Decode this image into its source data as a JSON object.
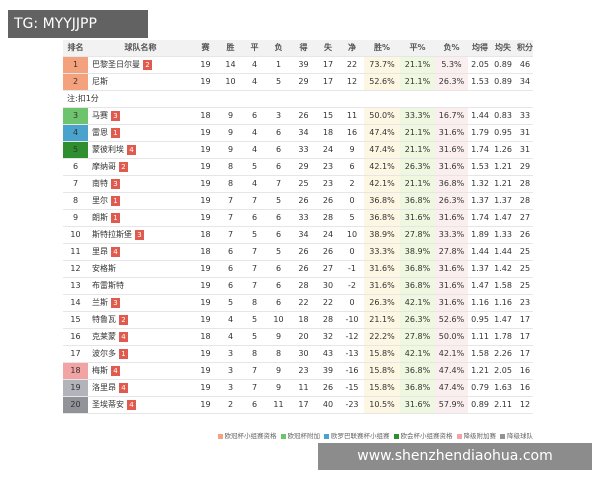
{
  "watermark_top": "TG: MYYJJPP",
  "watermark_bottom": "www.shenzhendiaohua.com",
  "table": {
    "header": [
      "排名",
      "球队名称",
      "赛",
      "胜",
      "平",
      "负",
      "得",
      "失",
      "净",
      "胜%",
      "平%",
      "负%",
      "均得",
      "均失",
      "积分"
    ],
    "rows": [
      {
        "rank": "1",
        "team": "巴黎圣日尔曼",
        "badge": "2",
        "color": "#f4a27e",
        "cells": [
          "19",
          "14",
          "4",
          "1",
          "39",
          "17",
          "22",
          "73.7%",
          "21.1%",
          "5.3%",
          "2.05",
          "0.89",
          "46"
        ]
      },
      {
        "rank": "2",
        "team": "尼斯",
        "color": "#f4a27e",
        "cells": [
          "19",
          "10",
          "4",
          "5",
          "29",
          "17",
          "12",
          "52.6%",
          "21.1%",
          "26.3%",
          "1.53",
          "0.89",
          "34"
        ]
      },
      {
        "note": "注:扣1分"
      },
      {
        "rank": "3",
        "team": "马赛",
        "badge": "3",
        "color": "#6dc46d",
        "cells": [
          "18",
          "9",
          "6",
          "3",
          "26",
          "15",
          "11",
          "50.0%",
          "33.3%",
          "16.7%",
          "1.44",
          "0.83",
          "33"
        ]
      },
      {
        "rank": "4",
        "team": "雷恩",
        "badge": "1",
        "color": "#4aa3cc",
        "cells": [
          "19",
          "9",
          "4",
          "6",
          "34",
          "18",
          "16",
          "47.4%",
          "21.1%",
          "31.6%",
          "1.79",
          "0.95",
          "31"
        ]
      },
      {
        "rank": "5",
        "team": "蒙彼利埃",
        "badge": "4",
        "color": "#2f8f2f",
        "cells": [
          "19",
          "9",
          "4",
          "6",
          "33",
          "24",
          "9",
          "47.4%",
          "21.1%",
          "31.6%",
          "1.74",
          "1.26",
          "31"
        ]
      },
      {
        "rank": "6",
        "team": "摩纳哥",
        "badge": "2",
        "cells": [
          "19",
          "8",
          "5",
          "6",
          "29",
          "23",
          "6",
          "42.1%",
          "26.3%",
          "31.6%",
          "1.53",
          "1.21",
          "29"
        ]
      },
      {
        "rank": "7",
        "team": "南特",
        "badge": "3",
        "cells": [
          "19",
          "8",
          "4",
          "7",
          "25",
          "23",
          "2",
          "42.1%",
          "21.1%",
          "36.8%",
          "1.32",
          "1.21",
          "28"
        ]
      },
      {
        "rank": "8",
        "team": "里尔",
        "badge": "1",
        "cells": [
          "19",
          "7",
          "7",
          "5",
          "26",
          "26",
          "0",
          "36.8%",
          "36.8%",
          "26.3%",
          "1.37",
          "1.37",
          "28"
        ]
      },
      {
        "rank": "9",
        "team": "朗斯",
        "badge": "1",
        "cells": [
          "19",
          "7",
          "6",
          "6",
          "33",
          "28",
          "5",
          "36.8%",
          "31.6%",
          "31.6%",
          "1.74",
          "1.47",
          "27"
        ]
      },
      {
        "rank": "10",
        "team": "斯特拉斯堡",
        "badge": "3",
        "cells": [
          "18",
          "7",
          "5",
          "6",
          "34",
          "24",
          "10",
          "38.9%",
          "27.8%",
          "33.3%",
          "1.89",
          "1.33",
          "26"
        ]
      },
      {
        "rank": "11",
        "team": "里昂",
        "badge": "4",
        "cells": [
          "18",
          "6",
          "7",
          "5",
          "26",
          "26",
          "0",
          "33.3%",
          "38.9%",
          "27.8%",
          "1.44",
          "1.44",
          "25"
        ]
      },
      {
        "rank": "12",
        "team": "安格斯",
        "cells": [
          "19",
          "6",
          "7",
          "6",
          "26",
          "27",
          "-1",
          "31.6%",
          "36.8%",
          "31.6%",
          "1.37",
          "1.42",
          "25"
        ]
      },
      {
        "rank": "13",
        "team": "布雷斯特",
        "cells": [
          "19",
          "6",
          "7",
          "6",
          "28",
          "30",
          "-2",
          "31.6%",
          "36.8%",
          "31.6%",
          "1.47",
          "1.58",
          "25"
        ]
      },
      {
        "rank": "14",
        "team": "兰斯",
        "badge": "3",
        "cells": [
          "19",
          "5",
          "8",
          "6",
          "22",
          "22",
          "0",
          "26.3%",
          "42.1%",
          "31.6%",
          "1.16",
          "1.16",
          "23"
        ]
      },
      {
        "rank": "15",
        "team": "特鲁瓦",
        "badge": "2",
        "cells": [
          "19",
          "4",
          "5",
          "10",
          "18",
          "28",
          "-10",
          "21.1%",
          "26.3%",
          "52.6%",
          "0.95",
          "1.47",
          "17"
        ]
      },
      {
        "rank": "16",
        "team": "克莱蒙",
        "badge": "4",
        "cells": [
          "18",
          "4",
          "5",
          "9",
          "20",
          "32",
          "-12",
          "22.2%",
          "27.8%",
          "50.0%",
          "1.11",
          "1.78",
          "17"
        ]
      },
      {
        "rank": "17",
        "team": "波尔多",
        "badge": "1",
        "cells": [
          "19",
          "3",
          "8",
          "8",
          "30",
          "43",
          "-13",
          "15.8%",
          "42.1%",
          "42.1%",
          "1.58",
          "2.26",
          "17"
        ]
      },
      {
        "rank": "18",
        "team": "梅斯",
        "badge": "4",
        "color": "#f2a3a3",
        "cells": [
          "19",
          "3",
          "7",
          "9",
          "23",
          "39",
          "-16",
          "15.8%",
          "36.8%",
          "47.4%",
          "1.21",
          "2.05",
          "16"
        ]
      },
      {
        "rank": "19",
        "team": "洛里昂",
        "badge": "4",
        "color": "#b3b3bb",
        "cells": [
          "19",
          "3",
          "7",
          "9",
          "11",
          "26",
          "-15",
          "15.8%",
          "36.8%",
          "47.4%",
          "0.79",
          "1.63",
          "16"
        ]
      },
      {
        "rank": "20",
        "team": "圣埃蒂安",
        "badge": "4",
        "color": "#929299",
        "cells": [
          "19",
          "2",
          "6",
          "11",
          "17",
          "40",
          "-23",
          "10.5%",
          "31.6%",
          "57.9%",
          "0.89",
          "2.11",
          "12"
        ]
      }
    ],
    "legend": [
      {
        "label": "欧冠杯小组赛资格",
        "color": "#f4a27e"
      },
      {
        "label": "欧冠杯附加",
        "color": "#6dc46d"
      },
      {
        "label": "欧罗巴联赛杯小组赛",
        "color": "#4aa3cc"
      },
      {
        "label": "欧会杯小组赛资格",
        "color": "#2f8f2f"
      },
      {
        "label": "降级附加赛",
        "color": "#f2a3a3"
      },
      {
        "label": "降级球队",
        "color": "#929299"
      }
    ]
  }
}
